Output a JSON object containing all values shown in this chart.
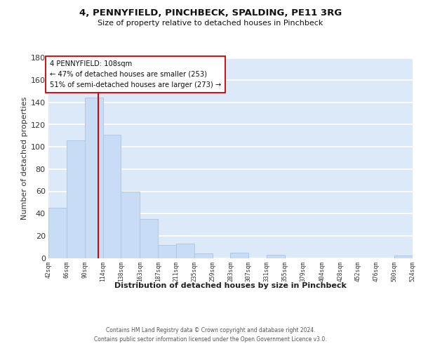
{
  "title": "4, PENNYFIELD, PINCHBECK, SPALDING, PE11 3RG",
  "subtitle": "Size of property relative to detached houses in Pinchbeck",
  "xlabel": "Distribution of detached houses by size in Pinchbeck",
  "ylabel": "Number of detached properties",
  "bar_color": "#c8ddf5",
  "bar_edge_color": "#aac4e0",
  "background_color": "#ffffff",
  "plot_bg_color": "#dce9f8",
  "bins": [
    42,
    66,
    90,
    114,
    138,
    163,
    187,
    211,
    235,
    259,
    283,
    307,
    331,
    355,
    379,
    404,
    428,
    452,
    476,
    500,
    524
  ],
  "values": [
    45,
    106,
    144,
    111,
    60,
    35,
    12,
    13,
    4,
    0,
    5,
    0,
    3,
    0,
    0,
    0,
    0,
    0,
    0,
    2
  ],
  "property_size": 108,
  "vline_color": "#cc0000",
  "annotation_line1": "4 PENNYFIELD: 108sqm",
  "annotation_line2": "← 47% of detached houses are smaller (253)",
  "annotation_line3": "51% of semi-detached houses are larger (273) →",
  "annotation_box_color": "#ffffff",
  "annotation_box_edge": "#cc0000",
  "ylim": [
    0,
    180
  ],
  "yticks": [
    0,
    20,
    40,
    60,
    80,
    100,
    120,
    140,
    160,
    180
  ],
  "tick_labels": [
    "42sqm",
    "66sqm",
    "90sqm",
    "114sqm",
    "138sqm",
    "163sqm",
    "187sqm",
    "211sqm",
    "235sqm",
    "259sqm",
    "283sqm",
    "307sqm",
    "331sqm",
    "355sqm",
    "379sqm",
    "404sqm",
    "428sqm",
    "452sqm",
    "476sqm",
    "500sqm",
    "524sqm"
  ],
  "footer_line1": "Contains HM Land Registry data © Crown copyright and database right 2024.",
  "footer_line2": "Contains public sector information licensed under the Open Government Licence v3.0."
}
